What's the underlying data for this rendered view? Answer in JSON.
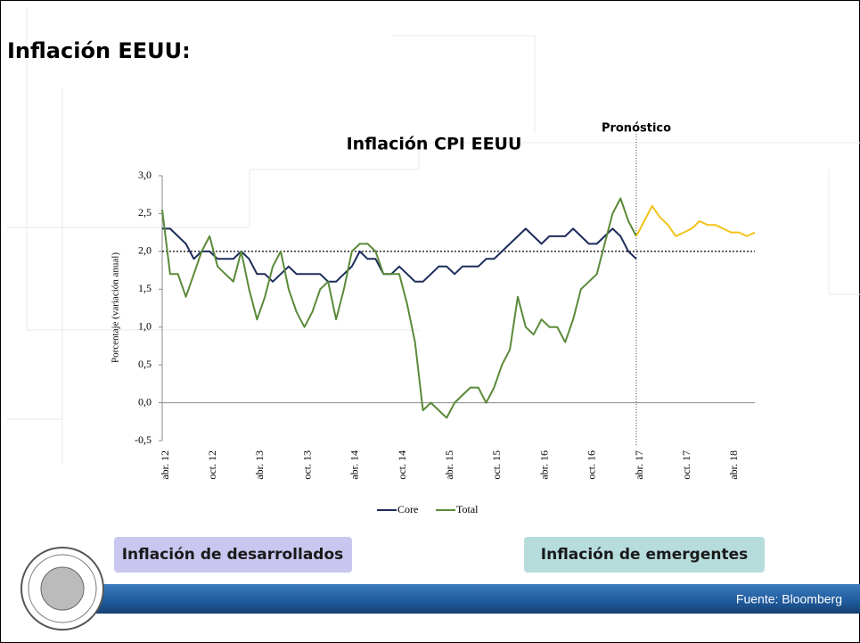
{
  "slide_title": "Inflación EEUU:",
  "chart_data": {
    "type": "line",
    "title": "Inflación CPI EEUU",
    "y_label": "Porcentaje (variación anual)",
    "annotation": "Pronóstico",
    "annotation_at": 60,
    "reference_line": 2,
    "categories": [
      "abr. 12",
      null,
      null,
      null,
      null,
      null,
      "oct. 12",
      null,
      null,
      null,
      null,
      null,
      "abr. 13",
      null,
      null,
      null,
      null,
      null,
      "oct. 13",
      null,
      null,
      null,
      null,
      null,
      "abr. 14",
      null,
      null,
      null,
      null,
      null,
      "oct. 14",
      null,
      null,
      null,
      null,
      null,
      "abr. 15",
      null,
      null,
      null,
      null,
      null,
      "oct. 15",
      null,
      null,
      null,
      null,
      null,
      "abr. 16",
      null,
      null,
      null,
      null,
      null,
      "oct. 16",
      null,
      null,
      null,
      null,
      null,
      "abr. 17",
      null,
      null,
      null,
      null,
      null,
      "oct. 17",
      null,
      null,
      null,
      null,
      null,
      "abr. 18",
      null,
      null,
      null
    ],
    "series": [
      {
        "name": "Core",
        "color": "#1c2b5a",
        "values": [
          2.3,
          2.3,
          2.2,
          2.1,
          1.9,
          2.0,
          2.0,
          1.9,
          1.9,
          1.9,
          2.0,
          1.9,
          1.7,
          1.7,
          1.6,
          1.7,
          1.8,
          1.7,
          1.7,
          1.7,
          1.7,
          1.6,
          1.6,
          1.7,
          1.8,
          2.0,
          1.9,
          1.9,
          1.7,
          1.7,
          1.8,
          1.7,
          1.6,
          1.6,
          1.7,
          1.8,
          1.8,
          1.7,
          1.8,
          1.8,
          1.8,
          1.9,
          1.9,
          2.0,
          2.1,
          2.2,
          2.3,
          2.2,
          2.1,
          2.2,
          2.2,
          2.2,
          2.3,
          2.2,
          2.1,
          2.1,
          2.2,
          2.3,
          2.2,
          2.0,
          1.9,
          null,
          null,
          null,
          null,
          null,
          null,
          null,
          null,
          null,
          null,
          null,
          null,
          null,
          null,
          null
        ]
      },
      {
        "name": "Total",
        "color": "#5a8a38",
        "values": [
          2.55,
          1.7,
          1.7,
          1.4,
          1.7,
          2.0,
          2.2,
          1.8,
          1.7,
          1.6,
          2.0,
          1.5,
          1.1,
          1.4,
          1.8,
          2.0,
          1.5,
          1.2,
          1.0,
          1.2,
          1.5,
          1.6,
          1.1,
          1.5,
          2.0,
          2.1,
          2.1,
          2.0,
          1.7,
          1.7,
          1.7,
          1.3,
          0.8,
          -0.1,
          0.0,
          -0.1,
          -0.2,
          0.0,
          0.1,
          0.2,
          0.2,
          0.0,
          0.2,
          0.5,
          0.7,
          1.4,
          1.0,
          0.9,
          1.1,
          1.0,
          1.0,
          0.8,
          1.1,
          1.5,
          1.6,
          1.7,
          2.1,
          2.5,
          2.7,
          2.4,
          2.2,
          null,
          null,
          null,
          null,
          null,
          null,
          null,
          null,
          null,
          null,
          null,
          null,
          null,
          null,
          null
        ]
      },
      {
        "color": "#f2c318",
        "values": [
          null,
          null,
          null,
          null,
          null,
          null,
          null,
          null,
          null,
          null,
          null,
          null,
          null,
          null,
          null,
          null,
          null,
          null,
          null,
          null,
          null,
          null,
          null,
          null,
          null,
          null,
          null,
          null,
          null,
          null,
          null,
          null,
          null,
          null,
          null,
          null,
          null,
          null,
          null,
          null,
          null,
          null,
          null,
          null,
          null,
          null,
          null,
          null,
          null,
          null,
          null,
          null,
          null,
          null,
          null,
          null,
          null,
          null,
          null,
          null,
          2.2,
          2.4,
          2.6,
          2.45,
          2.35,
          2.2,
          2.25,
          2.3,
          2.4,
          2.35,
          2.35,
          2.3,
          2.25,
          2.25,
          2.2,
          2.25
        ]
      }
    ],
    "ylim": [
      -0.5,
      3.0
    ],
    "yticks": [
      {
        "value": -0.5,
        "label": "-0,5"
      },
      {
        "value": 0,
        "label": "0,0"
      },
      {
        "value": 0.5,
        "label": "0,5"
      },
      {
        "value": 1,
        "label": "1,0"
      },
      {
        "value": 1.5,
        "label": "1,5"
      },
      {
        "value": 2,
        "label": "2,0"
      },
      {
        "value": 2.5,
        "label": "2,5"
      },
      {
        "value": 3,
        "label": "3,0"
      }
    ]
  },
  "buttons": [
    "Inflación de desarrollados",
    "Inflación de emergentes"
  ],
  "source": "Fuente: Bloomberg"
}
